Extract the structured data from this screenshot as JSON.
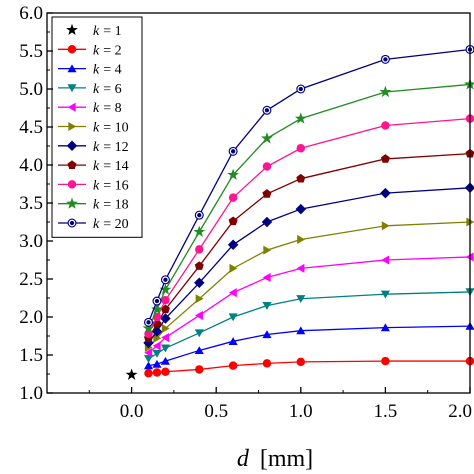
{
  "chart_data": {
    "type": "line",
    "xlabel_var": "d",
    "xlabel_unit": "[mm]",
    "ylabel": "",
    "title": "",
    "xlim": [
      -0.5,
      2.0
    ],
    "ylim": [
      1.0,
      6.0
    ],
    "xticks": [
      0.0,
      0.5,
      1.0,
      1.5,
      2.0
    ],
    "xtick_labels": [
      "0.0",
      "0.5",
      "1.0",
      "1.5",
      "2.0"
    ],
    "yticks": [
      1.0,
      1.5,
      2.0,
      2.5,
      3.0,
      3.5,
      4.0,
      4.5,
      5.0,
      5.5,
      6.0
    ],
    "ytick_labels": [
      "1.0",
      "1.5",
      "2.0",
      "2.5",
      "3.0",
      "3.5",
      "4.0",
      "4.5",
      "5.0",
      "5.5",
      "6.0"
    ],
    "grid": false,
    "legend_position": "top-left",
    "legend_var": "k",
    "x": [
      0.1,
      0.15,
      0.2,
      0.4,
      0.6,
      0.8,
      1.0,
      1.5,
      2.0
    ],
    "series": [
      {
        "name": "= 1",
        "k": "1",
        "color": "#000000",
        "marker": "star",
        "points": [
          [
            0.0,
            1.24
          ]
        ]
      },
      {
        "name": "= 2",
        "k": "2",
        "color": "#ff0000",
        "marker": "circle",
        "values": [
          1.26,
          1.27,
          1.28,
          1.31,
          1.36,
          1.39,
          1.41,
          1.42,
          1.42
        ]
      },
      {
        "name": "= 4",
        "k": "4",
        "color": "#0000ff",
        "marker": "triangle-up",
        "values": [
          1.36,
          1.38,
          1.42,
          1.56,
          1.68,
          1.77,
          1.82,
          1.86,
          1.88
        ]
      },
      {
        "name": "= 6",
        "k": "6",
        "color": "#008080",
        "marker": "triangle-down",
        "values": [
          1.45,
          1.52,
          1.59,
          1.79,
          2.0,
          2.15,
          2.24,
          2.3,
          2.33
        ]
      },
      {
        "name": "= 8",
        "k": "8",
        "color": "#ff00ff",
        "marker": "triangle-left",
        "values": [
          1.53,
          1.62,
          1.73,
          2.02,
          2.32,
          2.52,
          2.64,
          2.75,
          2.79
        ]
      },
      {
        "name": "= 10",
        "k": "10",
        "color": "#808000",
        "marker": "triangle-right",
        "values": [
          1.6,
          1.72,
          1.85,
          2.24,
          2.64,
          2.88,
          3.02,
          3.2,
          3.25
        ]
      },
      {
        "name": "= 12",
        "k": "12",
        "color": "#000080",
        "marker": "diamond",
        "values": [
          1.66,
          1.81,
          1.98,
          2.45,
          2.95,
          3.25,
          3.42,
          3.63,
          3.7
        ]
      },
      {
        "name": "= 14",
        "k": "14",
        "color": "#800000",
        "marker": "pentagon",
        "values": [
          1.72,
          1.91,
          2.1,
          2.67,
          3.26,
          3.62,
          3.82,
          4.08,
          4.15
        ]
      },
      {
        "name": "= 16",
        "k": "16",
        "color": "#ff1493",
        "marker": "circle",
        "values": [
          1.78,
          2.0,
          2.22,
          2.89,
          3.57,
          3.98,
          4.22,
          4.52,
          4.61
        ]
      },
      {
        "name": "= 18",
        "k": "18",
        "color": "#228b22",
        "marker": "star",
        "values": [
          1.85,
          2.1,
          2.36,
          3.12,
          3.87,
          4.35,
          4.61,
          4.96,
          5.06
        ]
      },
      {
        "name": "= 20",
        "k": "20",
        "color": "#000080",
        "marker": "circle-dot",
        "values": [
          1.93,
          2.21,
          2.49,
          3.34,
          4.18,
          4.72,
          5.0,
          5.39,
          5.52
        ]
      }
    ]
  }
}
